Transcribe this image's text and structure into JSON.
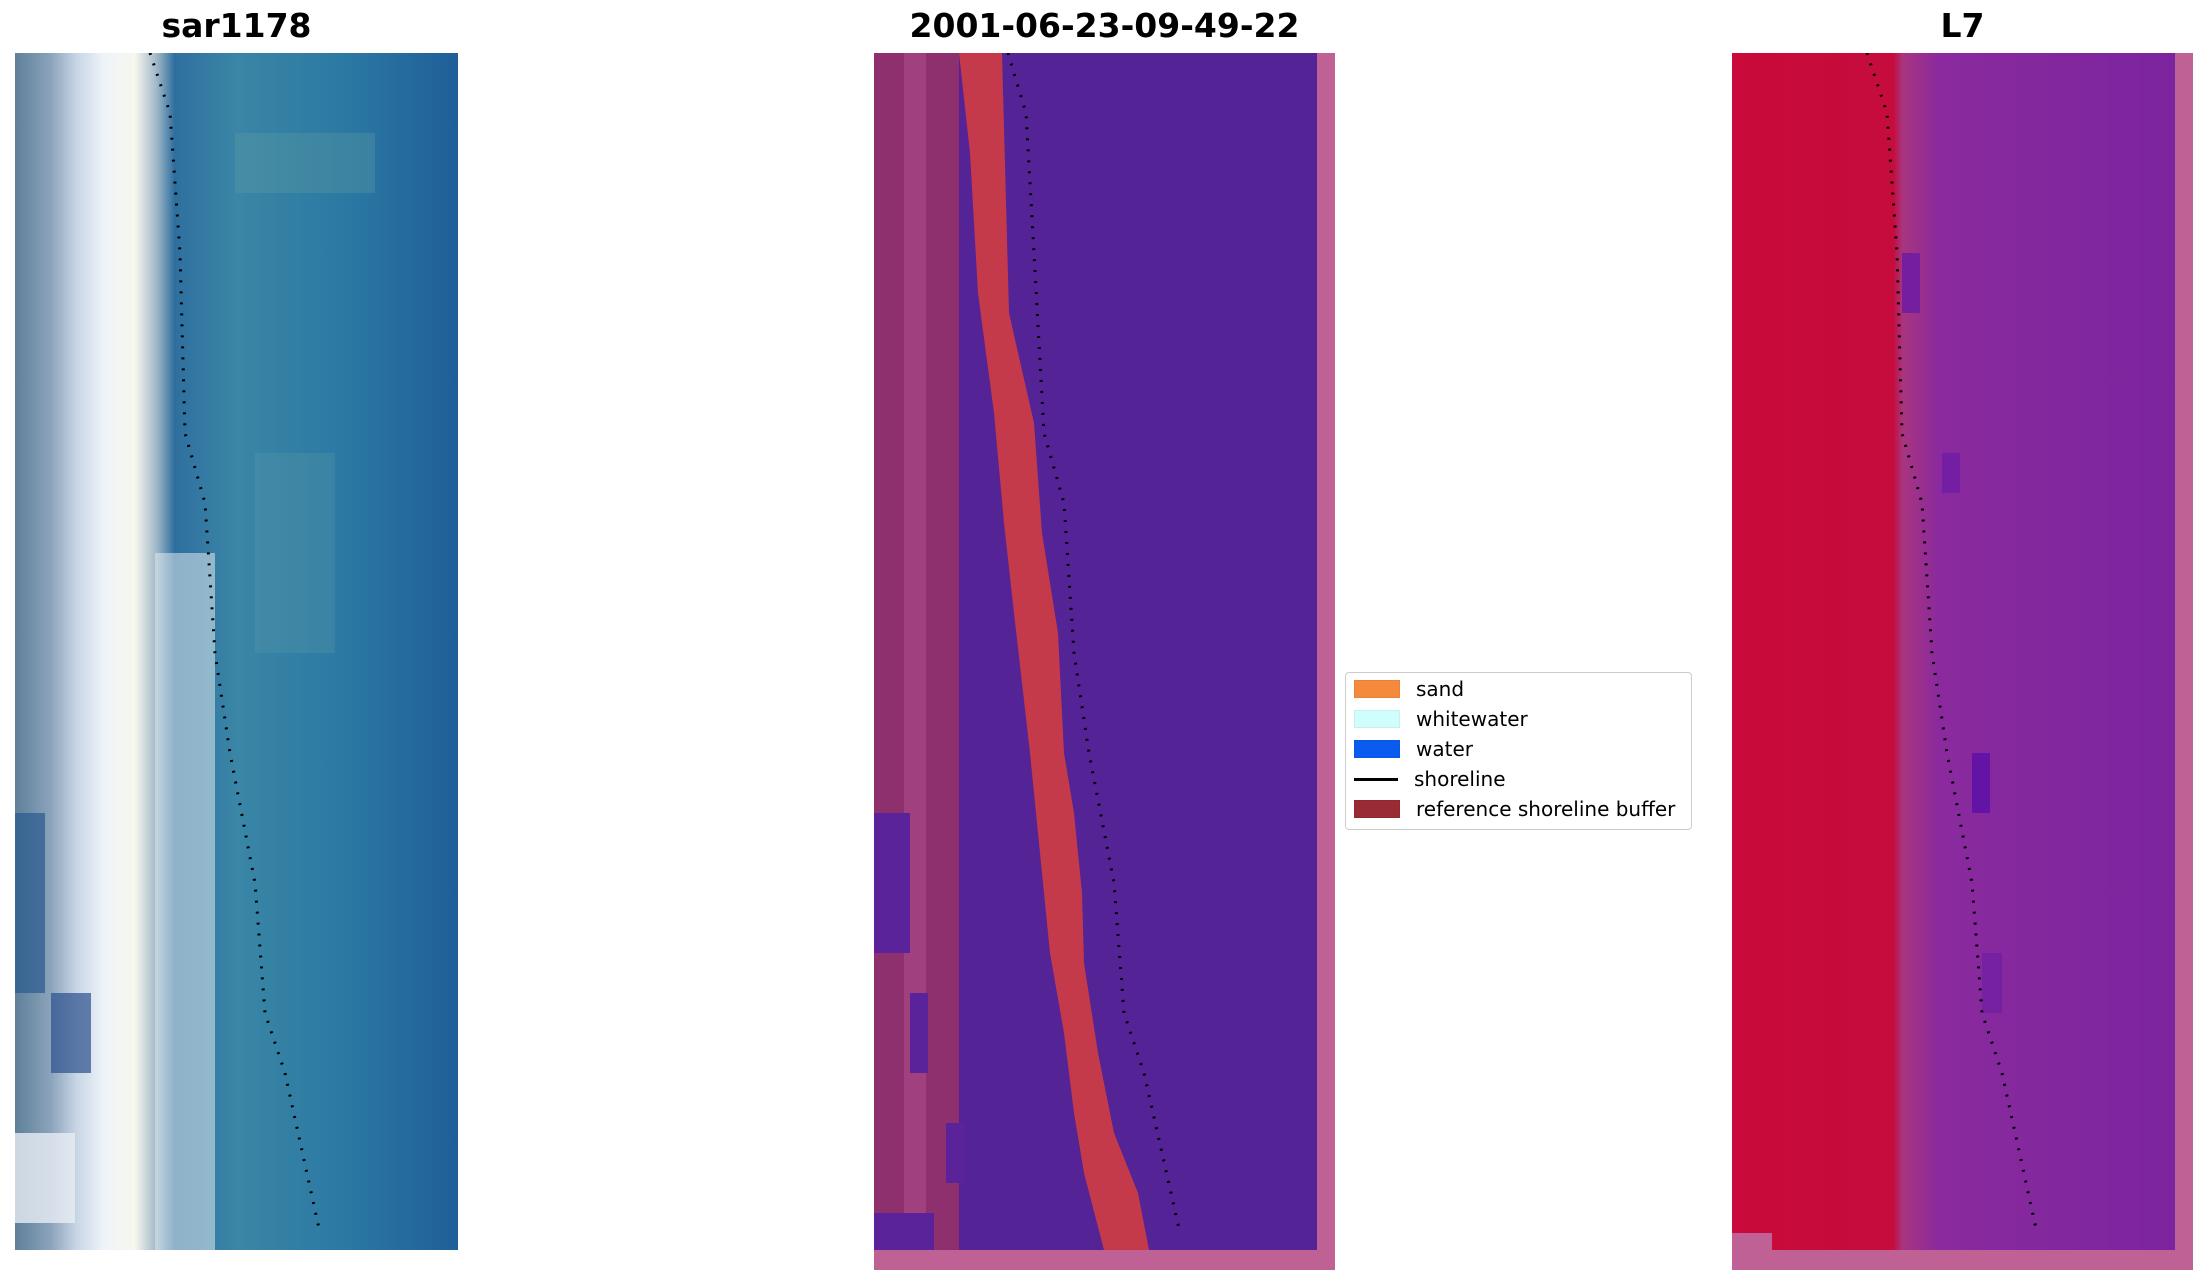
{
  "panels": {
    "left_title": "sar1178",
    "center_title": "2001-06-23-09-49-22",
    "right_title": "L7"
  },
  "legend": {
    "items": [
      {
        "label": "sand",
        "color": "#f58a3c"
      },
      {
        "label": "whitewater",
        "color": "#cffefd"
      },
      {
        "label": "water",
        "color": "#0a5cf0"
      },
      {
        "label": "shoreline",
        "color": "#000000"
      },
      {
        "label": "reference shoreline buffer",
        "color": "#982b34"
      }
    ]
  },
  "colors": {
    "rgb_water": "#2b78a3",
    "classified_water": "#542396",
    "buffer_red": "#c43a4a",
    "nodata_frame": "#c06196",
    "ndwi_land": "#c90a3a",
    "ndwi_water": "#7a249f"
  }
}
